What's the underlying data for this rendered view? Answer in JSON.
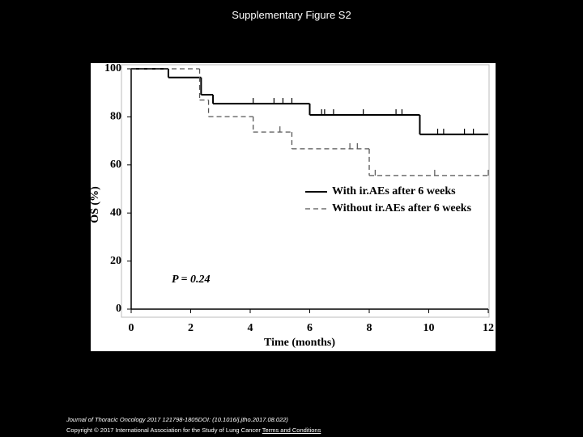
{
  "slide": {
    "title": "Supplementary Figure S2",
    "citation": "Journal of Thoracic Oncology 2017 121798-1805DOI: (10.1016/j.jtho.2017.08.022)",
    "copyright": "Copyright © 2017 International Association for the Study of Lung Cancer",
    "link": "Terms and Conditions"
  },
  "chart_data": {
    "type": "step",
    "xlabel": "Time (months)",
    "ylabel": "OS (%)",
    "annotation": "P = 0.24",
    "xlim": [
      0,
      12
    ],
    "xticks": [
      0,
      2,
      4,
      6,
      8,
      10,
      12
    ],
    "ylim": [
      0,
      100
    ],
    "yticks": [
      0,
      20,
      40,
      60,
      80,
      100
    ],
    "legend": "center-right",
    "series": [
      {
        "name": "With ir.AEs after 6 weeks",
        "color": "#000000",
        "dashed": false,
        "x": [
          0,
          1.25,
          2.35,
          2.75,
          6.0,
          9.7,
          12
        ],
        "values": [
          100,
          96.4,
          89.2,
          85.5,
          80.8,
          72.7,
          72.7
        ],
        "censored": [
          4.1,
          4.8,
          5.1,
          5.4,
          6.4,
          6.5,
          6.8,
          7.8,
          8.9,
          9.1,
          10.3,
          10.5,
          11.2,
          11.5
        ]
      },
      {
        "name": "Without ir.AEs after 6 weeks",
        "color": "#555555",
        "dashed": true,
        "x": [
          0,
          2.3,
          2.6,
          4.1,
          5.4,
          8.0,
          12
        ],
        "values": [
          100,
          87,
          80.1,
          73.7,
          66.7,
          55.6,
          55.6
        ],
        "censored": [
          5.0,
          7.35,
          7.6,
          8.2,
          10.2,
          12.0
        ]
      }
    ]
  }
}
